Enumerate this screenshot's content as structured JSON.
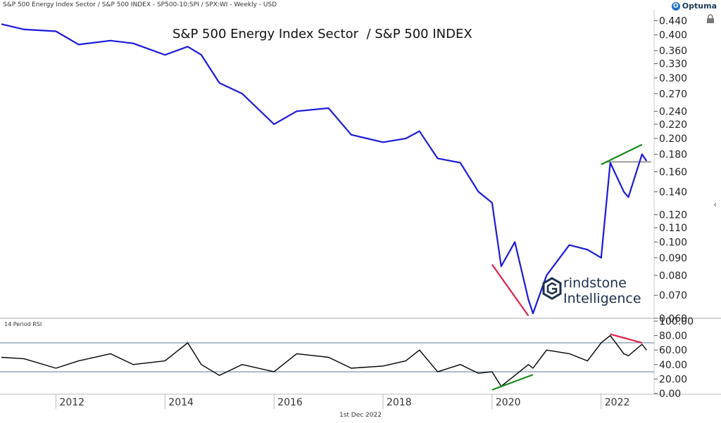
{
  "header": {
    "text": "S&P 500 Energy Index Sector  / S&P 500 INDEX - SP500-10:SPI / SPX:WI - Weekly - USD"
  },
  "brand": {
    "name": "Optuma",
    "icon": "optuma-logo-icon"
  },
  "footer": {
    "date": "1st Dec 2022"
  },
  "watermark": {
    "line1": "rindstone",
    "line2": "Intelligence",
    "logo": "grindstone-g-logo"
  },
  "colors": {
    "price_line": "#1a1adb",
    "rsi_line": "#000000",
    "uptrend": "#1a8a1a",
    "downtrend": "#e0224a",
    "band": "#7f93aa"
  },
  "chart_data": [
    {
      "type": "line",
      "title": "S&P 500 Energy Index Sector  / S&P 500 INDEX",
      "scale": "log",
      "x": [
        "2011-01",
        "2011-06",
        "2012-01",
        "2012-06",
        "2013-01",
        "2013-06",
        "2014-01",
        "2014-06",
        "2014-09",
        "2015-01",
        "2015-06",
        "2016-01",
        "2016-06",
        "2017-01",
        "2017-06",
        "2018-01",
        "2018-06",
        "2018-09",
        "2019-01",
        "2019-06",
        "2019-10",
        "2020-01",
        "2020-03",
        "2020-06",
        "2020-09",
        "2020-10",
        "2021-01",
        "2021-06",
        "2021-10",
        "2022-01",
        "2022-03",
        "2022-06",
        "2022-07",
        "2022-10",
        "2022-11"
      ],
      "series": [
        {
          "values": [
            0.43,
            0.415,
            0.41,
            0.375,
            0.385,
            0.378,
            0.35,
            0.37,
            0.35,
            0.29,
            0.27,
            0.22,
            0.24,
            0.245,
            0.205,
            0.195,
            0.2,
            0.21,
            0.175,
            0.17,
            0.14,
            0.13,
            0.085,
            0.1,
            0.068,
            0.062,
            0.08,
            0.098,
            0.095,
            0.09,
            0.17,
            0.14,
            0.135,
            0.18,
            0.172
          ]
        }
      ],
      "yticks": [
        "0.440",
        "0.400",
        "0.360",
        "0.330",
        "0.300",
        "0.270",
        "0.240",
        "0.220",
        "0.200",
        "0.180",
        "0.160",
        "0.140",
        "0.120",
        "0.110",
        "0.100",
        "0.090",
        "0.080",
        "0.070",
        "0.060"
      ],
      "ylim": [
        0.06,
        0.46
      ],
      "xticks": [
        "2012",
        "2014",
        "2016",
        "2018",
        "2020",
        "2022"
      ],
      "reference_line": 0.171,
      "trendlines": [
        {
          "color": "downtrend",
          "from": [
            "2020-01",
            0.086
          ],
          "to": [
            "2020-09",
            0.061
          ]
        },
        {
          "color": "uptrend",
          "from": [
            "2022-01",
            0.168
          ],
          "to": [
            "2022-10",
            0.192
          ]
        }
      ]
    },
    {
      "type": "line",
      "title": "14 Period RSI",
      "x": [
        "2011-01",
        "2011-06",
        "2012-01",
        "2012-06",
        "2013-01",
        "2013-06",
        "2014-01",
        "2014-06",
        "2014-09",
        "2015-01",
        "2015-06",
        "2016-01",
        "2016-06",
        "2017-01",
        "2017-06",
        "2018-01",
        "2018-06",
        "2018-09",
        "2019-01",
        "2019-06",
        "2019-10",
        "2020-01",
        "2020-03",
        "2020-06",
        "2020-09",
        "2020-10",
        "2021-01",
        "2021-06",
        "2021-10",
        "2022-01",
        "2022-03",
        "2022-06",
        "2022-07",
        "2022-10",
        "2022-11"
      ],
      "series": [
        {
          "values": [
            50,
            48,
            35,
            45,
            55,
            40,
            45,
            70,
            40,
            25,
            40,
            30,
            55,
            50,
            35,
            38,
            45,
            60,
            30,
            40,
            28,
            30,
            10,
            25,
            40,
            35,
            60,
            55,
            45,
            70,
            80,
            55,
            52,
            68,
            60
          ]
        }
      ],
      "yticks": [
        "100.00",
        "80.00",
        "60.00",
        "40.00",
        "20.00",
        "0.00"
      ],
      "ylim": [
        0,
        100
      ],
      "bands": [
        70,
        30
      ],
      "trendlines": [
        {
          "color": "uptrend",
          "from": [
            "2020-01",
            5
          ],
          "to": [
            "2020-10",
            26
          ]
        },
        {
          "color": "downtrend",
          "from": [
            "2022-03",
            82
          ],
          "to": [
            "2022-10",
            70
          ]
        }
      ]
    }
  ]
}
